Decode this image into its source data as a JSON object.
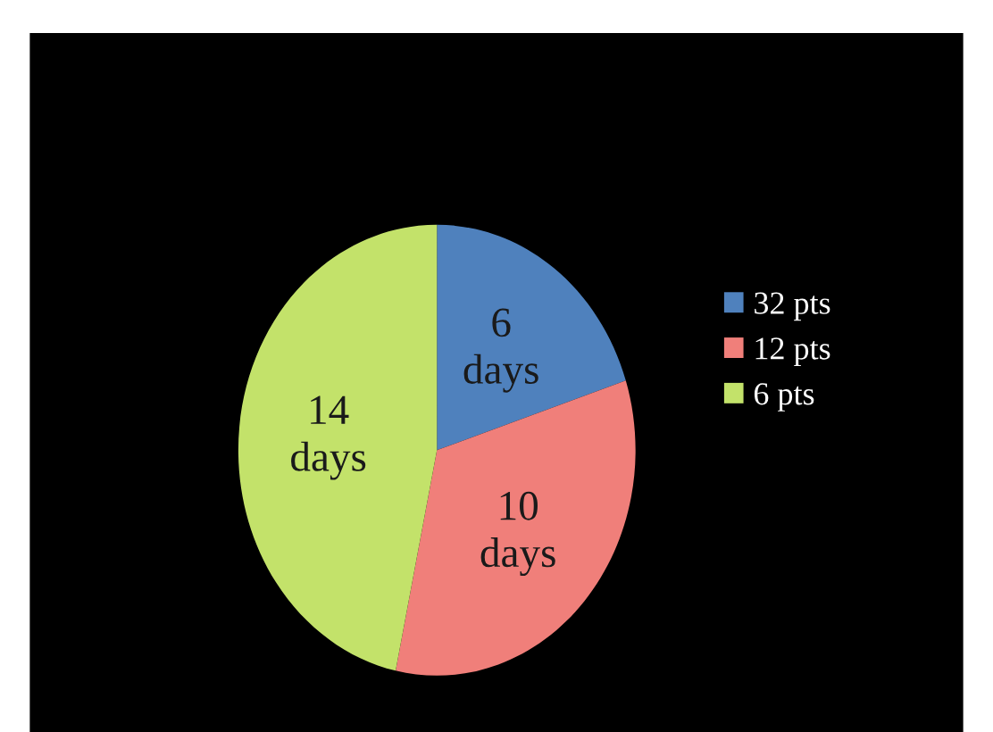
{
  "chart_data": {
    "type": "pie",
    "categories": [
      "32 pts",
      "12 pts",
      "6 pts"
    ],
    "values": [
      6,
      10,
      14
    ],
    "colors": [
      "#4f81bd",
      "#f07f7a",
      "#c3e26a"
    ],
    "value_labels": [
      "6\ndays",
      "10\ndays",
      "14\ndays"
    ],
    "legend": "right"
  }
}
